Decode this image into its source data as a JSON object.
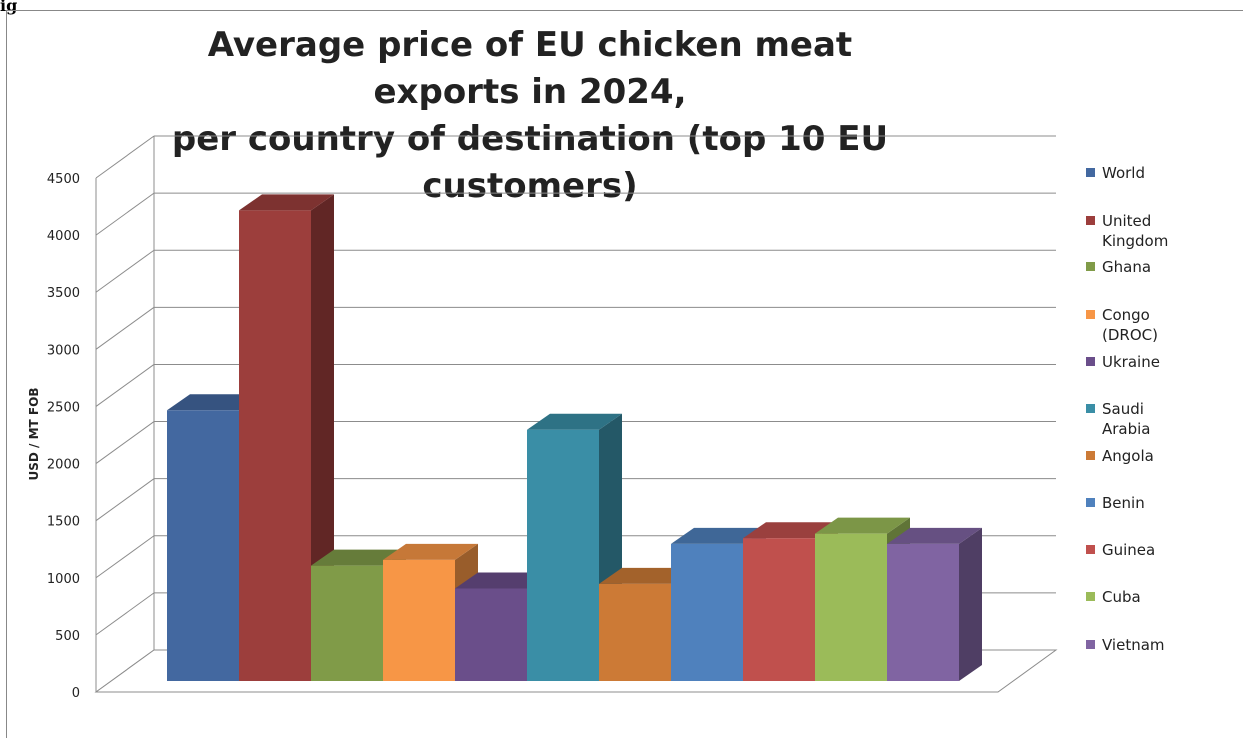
{
  "figure_label": "ig",
  "chart_data": {
    "type": "bar",
    "title_lines": [
      "Average price of EU chicken meat exports in 2024,",
      "per country of destination (top 10 EU customers)"
    ],
    "xlabel": "",
    "ylabel": "USD / MT FOB",
    "ylim": [
      0,
      4500
    ],
    "yticks": [
      0,
      500,
      1000,
      1500,
      2000,
      2500,
      3000,
      3500,
      4000,
      4500
    ],
    "grid": true,
    "legend_position": "right",
    "series": [
      {
        "name": "World",
        "value": 2370,
        "color": "#4368a0"
      },
      {
        "name": "United Kingdom",
        "value": 4120,
        "color": "#9c3e3c"
      },
      {
        "name": "Ghana",
        "value": 1010,
        "color": "#809b48"
      },
      {
        "name": "Congo (DROC)",
        "value": 1060,
        "color": "#f79646"
      },
      {
        "name": "Ukraine",
        "value": 810,
        "color": "#6a4e8a"
      },
      {
        "name": "Saudi Arabia",
        "value": 2200,
        "color": "#3a8ea6"
      },
      {
        "name": "Angola",
        "value": 850,
        "color": "#cc7a36"
      },
      {
        "name": "Benin",
        "value": 1200,
        "color": "#4f81bd"
      },
      {
        "name": "Guinea",
        "value": 1250,
        "color": "#c0504d"
      },
      {
        "name": "Cuba",
        "value": 1290,
        "color": "#9bbb59"
      },
      {
        "name": "Vietnam",
        "value": 1200,
        "color": "#8064a2"
      }
    ]
  }
}
